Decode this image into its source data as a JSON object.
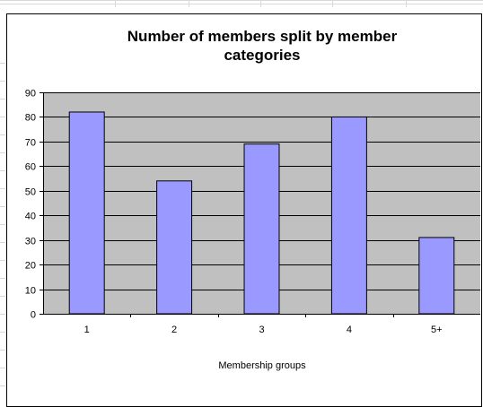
{
  "chart_data": {
    "type": "bar",
    "title": "Number of members split by member categories",
    "title_lines": [
      "Number of members split by member",
      "categories"
    ],
    "xlabel": "Membership groups",
    "ylabel": "",
    "categories": [
      "1",
      "2",
      "3",
      "4",
      "5+"
    ],
    "values": [
      82,
      54,
      69,
      80,
      31
    ],
    "ylim": [
      0,
      90
    ],
    "yticks": [
      0,
      10,
      20,
      30,
      40,
      50,
      60,
      70,
      80,
      90
    ],
    "grid": true,
    "legend": "none",
    "colors": {
      "bar_fill": "#9999ff",
      "bar_stroke": "#000000",
      "plot_background": "#c0c0c0",
      "gridline": "#000000"
    }
  }
}
